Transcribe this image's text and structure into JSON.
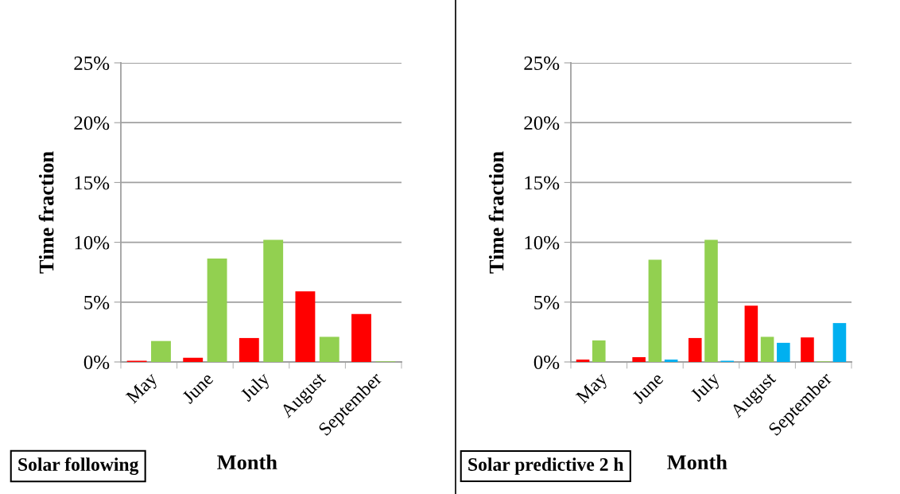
{
  "chart_data": [
    {
      "type": "bar",
      "xlabel": "Month",
      "ylabel": "Time fraction",
      "annotations": [
        "Solar following"
      ],
      "categories": [
        "May",
        "June",
        "July",
        "August",
        "September"
      ],
      "series": [
        {
          "color": "#ff0000",
          "values": [
            0.1,
            0.35,
            2.0,
            5.9,
            4.0
          ]
        },
        {
          "color": "#92d050",
          "values": [
            1.75,
            8.65,
            10.2,
            2.1,
            0.05
          ]
        }
      ],
      "ylim": [
        0,
        25
      ],
      "yticks": [
        {
          "value": 0,
          "label": "0%"
        },
        {
          "value": 5,
          "label": "5%"
        },
        {
          "value": 10,
          "label": "10%"
        },
        {
          "value": 15,
          "label": "15%"
        },
        {
          "value": 20,
          "label": "20%"
        },
        {
          "value": 25,
          "label": "25%"
        }
      ],
      "grid": "y"
    },
    {
      "type": "bar",
      "xlabel": "Month",
      "ylabel": "Time fraction",
      "annotations": [
        "Solar predictive 2 h"
      ],
      "categories": [
        "May",
        "June",
        "July",
        "August",
        "September"
      ],
      "series": [
        {
          "color": "#ff0000",
          "values": [
            0.2,
            0.4,
            2.0,
            4.7,
            2.05
          ]
        },
        {
          "color": "#92d050",
          "values": [
            1.8,
            8.55,
            10.2,
            2.1,
            0.05
          ]
        },
        {
          "color": "#00b0f0",
          "values": [
            null,
            0.2,
            0.1,
            1.6,
            3.25
          ]
        }
      ],
      "ylim": [
        0,
        25
      ],
      "yticks": [
        {
          "value": 0,
          "label": "0%"
        },
        {
          "value": 5,
          "label": "5%"
        },
        {
          "value": 10,
          "label": "10%"
        },
        {
          "value": 15,
          "label": "15%"
        },
        {
          "value": 20,
          "label": "20%"
        },
        {
          "value": 25,
          "label": "25%"
        }
      ],
      "grid": "y"
    }
  ]
}
